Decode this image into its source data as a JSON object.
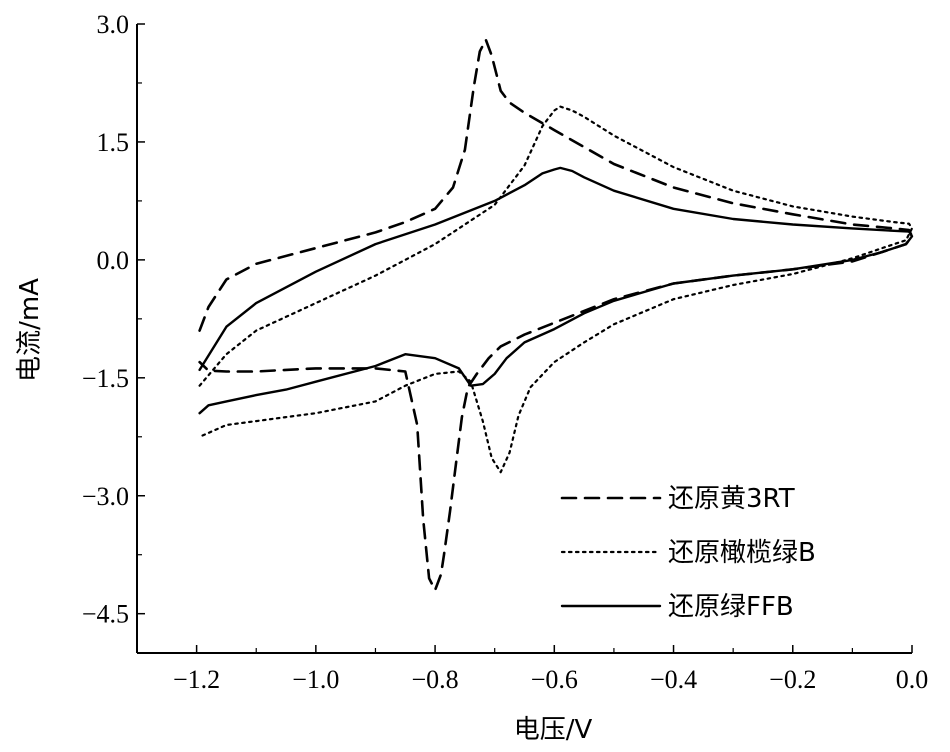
{
  "chart_data": {
    "type": "line",
    "title": "",
    "xlabel": "电压/V",
    "ylabel": "电流/mA",
    "xlim": [
      -1.3,
      0.0
    ],
    "ylim": [
      -5.0,
      3.0
    ],
    "x_ticks": [
      -1.2,
      -1.0,
      -0.8,
      -0.6,
      -0.4,
      -0.2,
      0.0
    ],
    "x_tick_labels": [
      "−1.2",
      "−1.0",
      "−0.8",
      "−0.6",
      "−0.4",
      "−0.2",
      "0.0"
    ],
    "y_ticks": [
      3.0,
      1.5,
      0.0,
      -1.5,
      -3.0,
      -4.5
    ],
    "y_tick_labels": [
      "3.0",
      "1.5",
      "0.0",
      "−1.5",
      "−3.0",
      "−4.5"
    ],
    "grid": false,
    "legend_position": "bottom-right",
    "series": [
      {
        "name": "还原黄3RT",
        "line_style": "dashed",
        "color": "#000000",
        "x": [
          -1.195,
          -1.18,
          -1.15,
          -1.1,
          -1.0,
          -0.9,
          -0.85,
          -0.8,
          -0.77,
          -0.75,
          -0.735,
          -0.725,
          -0.715,
          -0.705,
          -0.69,
          -0.675,
          -0.65,
          -0.6,
          -0.5,
          -0.4,
          -0.3,
          -0.2,
          -0.1,
          -0.03,
          -0.005,
          0.0,
          -0.01,
          -0.05,
          -0.1,
          -0.2,
          -0.3,
          -0.4,
          -0.5,
          -0.55,
          -0.6,
          -0.65,
          -0.69,
          -0.71,
          -0.73,
          -0.745,
          -0.755,
          -0.765,
          -0.775,
          -0.785,
          -0.79,
          -0.8,
          -0.81,
          -0.82,
          -0.83,
          -0.85,
          -0.9,
          -0.95,
          -1.0,
          -1.05,
          -1.1,
          -1.15,
          -1.18,
          -1.195
        ],
        "y": [
          -0.9,
          -0.6,
          -0.25,
          -0.05,
          0.15,
          0.35,
          0.48,
          0.65,
          0.92,
          1.4,
          2.2,
          2.65,
          2.8,
          2.6,
          2.15,
          2.0,
          1.87,
          1.65,
          1.22,
          0.92,
          0.72,
          0.58,
          0.45,
          0.4,
          0.38,
          0.3,
          0.2,
          0.1,
          -0.02,
          -0.12,
          -0.2,
          -0.3,
          -0.5,
          -0.65,
          -0.8,
          -0.95,
          -1.1,
          -1.25,
          -1.45,
          -1.62,
          -2.0,
          -2.6,
          -3.2,
          -3.75,
          -4.0,
          -4.2,
          -4.05,
          -3.3,
          -2.1,
          -1.42,
          -1.38,
          -1.38,
          -1.38,
          -1.4,
          -1.42,
          -1.42,
          -1.41,
          -1.3
        ]
      },
      {
        "name": "还原橄榄绿B",
        "line_style": "dotted",
        "color": "#000000",
        "x": [
          -1.195,
          -1.15,
          -1.1,
          -1.0,
          -0.9,
          -0.8,
          -0.7,
          -0.65,
          -0.62,
          -0.6,
          -0.59,
          -0.57,
          -0.55,
          -0.5,
          -0.4,
          -0.3,
          -0.2,
          -0.1,
          -0.03,
          -0.005,
          0.0,
          -0.01,
          -0.05,
          -0.1,
          -0.2,
          -0.3,
          -0.4,
          -0.5,
          -0.55,
          -0.6,
          -0.64,
          -0.66,
          -0.675,
          -0.69,
          -0.705,
          -0.72,
          -0.74,
          -0.76,
          -0.8,
          -0.85,
          -0.9,
          -1.0,
          -1.05,
          -1.1,
          -1.15,
          -1.18,
          -1.195
        ],
        "y": [
          -1.6,
          -1.2,
          -0.9,
          -0.55,
          -0.2,
          0.2,
          0.7,
          1.2,
          1.7,
          1.9,
          1.95,
          1.9,
          1.82,
          1.58,
          1.18,
          0.88,
          0.68,
          0.55,
          0.48,
          0.46,
          0.4,
          0.25,
          0.15,
          0.02,
          -0.18,
          -0.32,
          -0.5,
          -0.82,
          -1.05,
          -1.3,
          -1.62,
          -1.98,
          -2.45,
          -2.7,
          -2.52,
          -2.05,
          -1.55,
          -1.42,
          -1.45,
          -1.6,
          -1.8,
          -1.95,
          -2.0,
          -2.05,
          -2.1,
          -2.2,
          -2.25
        ]
      },
      {
        "name": "还原绿FFB",
        "line_style": "solid",
        "color": "#000000",
        "x": [
          -1.195,
          -1.15,
          -1.1,
          -1.0,
          -0.9,
          -0.8,
          -0.7,
          -0.65,
          -0.62,
          -0.6,
          -0.59,
          -0.57,
          -0.55,
          -0.5,
          -0.4,
          -0.3,
          -0.2,
          -0.1,
          -0.03,
          -0.005,
          0.0,
          -0.01,
          -0.05,
          -0.1,
          -0.2,
          -0.3,
          -0.4,
          -0.5,
          -0.55,
          -0.6,
          -0.65,
          -0.68,
          -0.7,
          -0.72,
          -0.74,
          -0.76,
          -0.8,
          -0.85,
          -0.9,
          -1.0,
          -1.05,
          -1.1,
          -1.15,
          -1.18,
          -1.195
        ],
        "y": [
          -1.4,
          -0.85,
          -0.55,
          -0.15,
          0.2,
          0.45,
          0.75,
          0.95,
          1.1,
          1.15,
          1.17,
          1.13,
          1.05,
          0.88,
          0.65,
          0.52,
          0.45,
          0.4,
          0.37,
          0.36,
          0.3,
          0.2,
          0.1,
          0.0,
          -0.12,
          -0.2,
          -0.3,
          -0.52,
          -0.68,
          -0.88,
          -1.05,
          -1.25,
          -1.45,
          -1.58,
          -1.6,
          -1.38,
          -1.25,
          -1.2,
          -1.35,
          -1.55,
          -1.65,
          -1.72,
          -1.8,
          -1.85,
          -1.95
        ]
      }
    ]
  }
}
